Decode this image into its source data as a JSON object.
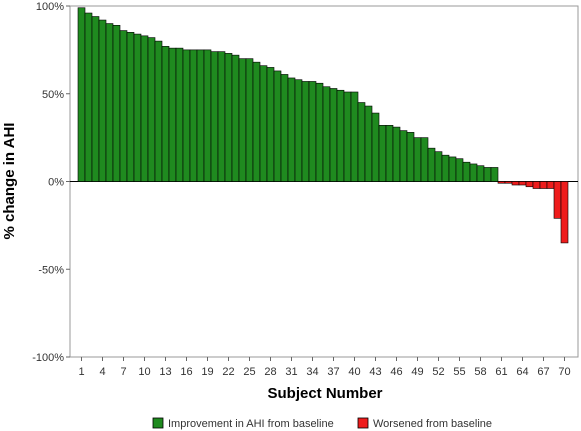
{
  "chart_data": {
    "type": "bar",
    "title": "",
    "xlabel": "Subject Number",
    "ylabel": "% change in AHI",
    "ylim": [
      -100,
      100
    ],
    "y_ticks": [
      100,
      50,
      0,
      -50,
      -100
    ],
    "y_tick_labels": [
      "100%",
      "50%",
      "0%",
      "-50%",
      "-100%"
    ],
    "x_tick_labels": [
      "1",
      "4",
      "7",
      "10",
      "13",
      "16",
      "19",
      "22",
      "25",
      "28",
      "31",
      "34",
      "37",
      "40",
      "43",
      "46",
      "49",
      "52",
      "55",
      "58",
      "61",
      "64",
      "67",
      "70"
    ],
    "grid": false,
    "legend_position": "bottom-center",
    "colors": {
      "improvement": "#1f8a1f",
      "worsened": "#ee1c1c",
      "bar_edge": "#000000"
    },
    "categories": [
      "1",
      "2",
      "3",
      "4",
      "5",
      "6",
      "7",
      "8",
      "9",
      "10",
      "11",
      "12",
      "13",
      "14",
      "15",
      "16",
      "17",
      "18",
      "19",
      "20",
      "21",
      "22",
      "23",
      "24",
      "25",
      "26",
      "27",
      "28",
      "29",
      "30",
      "31",
      "32",
      "33",
      "34",
      "35",
      "36",
      "37",
      "38",
      "39",
      "40",
      "41",
      "42",
      "43",
      "44",
      "45",
      "46",
      "47",
      "48",
      "49",
      "50",
      "51",
      "52",
      "53",
      "54",
      "55",
      "56",
      "57",
      "58",
      "59",
      "60",
      "61",
      "62",
      "63",
      "64",
      "65",
      "66",
      "67",
      "68",
      "69",
      "70"
    ],
    "series": [
      {
        "name": "Improvement in AHI from baseline",
        "color_key": "improvement",
        "values": [
          99,
          96,
          94,
          92,
          90,
          89,
          86,
          85,
          84,
          83,
          82,
          80,
          77,
          76,
          76,
          75,
          75,
          75,
          75,
          74,
          74,
          73,
          72,
          70,
          70,
          68,
          66,
          65,
          63,
          61,
          59,
          58,
          57,
          57,
          56,
          54,
          53,
          52,
          51,
          51,
          45,
          43,
          39,
          32,
          32,
          31,
          29,
          28,
          25,
          25,
          19,
          17,
          15,
          14,
          13,
          11,
          10,
          9,
          8,
          8,
          null,
          null,
          null,
          null,
          null,
          null,
          null,
          null,
          null,
          null
        ]
      },
      {
        "name": "Worsened from baseline",
        "color_key": "worsened",
        "values": [
          null,
          null,
          null,
          null,
          null,
          null,
          null,
          null,
          null,
          null,
          null,
          null,
          null,
          null,
          null,
          null,
          null,
          null,
          null,
          null,
          null,
          null,
          null,
          null,
          null,
          null,
          null,
          null,
          null,
          null,
          null,
          null,
          null,
          null,
          null,
          null,
          null,
          null,
          null,
          null,
          null,
          null,
          null,
          null,
          null,
          null,
          null,
          null,
          null,
          null,
          null,
          null,
          null,
          null,
          null,
          null,
          null,
          null,
          null,
          null,
          -1,
          -1,
          -2,
          -2,
          -3,
          -4,
          -4,
          -4,
          -21,
          -35
        ]
      }
    ]
  }
}
